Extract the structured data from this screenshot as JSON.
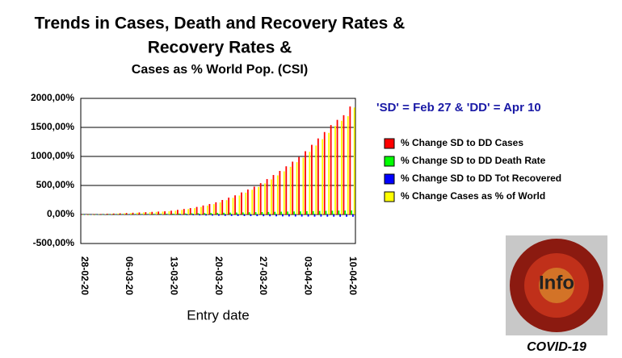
{
  "chart_data": {
    "type": "bar",
    "title": "Trends in Cases, Death and Recovery Rates &",
    "subtitle": "Cases as % World Pop. (CSI)",
    "annotation": "'SD' = Feb 27 & 'DD' = Apr 10",
    "x_label": "Entry date",
    "image_text": "Info",
    "image_caption": "COVID-19",
    "categories": [
      "28-02-20",
      null,
      null,
      null,
      null,
      null,
      null,
      "06-03-20",
      null,
      null,
      null,
      null,
      null,
      null,
      "13-03-20",
      null,
      null,
      null,
      null,
      null,
      null,
      "20-03-20",
      null,
      null,
      null,
      null,
      null,
      null,
      "27-03-20",
      null,
      null,
      null,
      null,
      null,
      null,
      "03-04-20",
      null,
      null,
      null,
      null,
      null,
      null,
      "10-04-20"
    ],
    "series": [
      {
        "name": "% Change SD to DD Cases",
        "color": "#ff0000",
        "values": [
          0,
          2,
          5,
          8,
          12,
          16,
          20,
          25,
          30,
          35,
          40,
          45,
          50,
          55,
          65,
          80,
          95,
          110,
          130,
          155,
          180,
          210,
          250,
          290,
          330,
          380,
          430,
          480,
          540,
          610,
          680,
          750,
          830,
          910,
          990,
          1090,
          1200,
          1310,
          1420,
          1540,
          1630,
          1710,
          1860
        ]
      },
      {
        "name": "% Change SD to DD Death Rate",
        "color": "#00ff00",
        "values": [
          0,
          1,
          2,
          3,
          4,
          5,
          6,
          7,
          8,
          9,
          10,
          11,
          12,
          13,
          14,
          16,
          18,
          20,
          22,
          24,
          26,
          28,
          30,
          32,
          34,
          36,
          38,
          40,
          42,
          44,
          46,
          48,
          50,
          52,
          54,
          56,
          58,
          60,
          62,
          64,
          66,
          68,
          70
        ]
      },
      {
        "name": "% Change SD to DD Tot Recovered",
        "color": "#0000ff",
        "values": [
          0,
          2,
          3,
          4,
          4,
          4,
          3,
          3,
          2,
          1,
          0,
          -2,
          -4,
          -6,
          -8,
          -10,
          -12,
          -14,
          -16,
          -18,
          -20,
          -22,
          -24,
          -25,
          -26,
          -27,
          -28,
          -29,
          -30,
          -31,
          -32,
          -33,
          -34,
          -35,
          -36,
          -36,
          -37,
          -37,
          -38,
          -38,
          -39,
          -39,
          -40
        ]
      },
      {
        "name": "% Change Cases as % of World",
        "color": "#ffff00",
        "values": [
          0,
          2,
          5,
          8,
          12,
          16,
          20,
          25,
          30,
          35,
          40,
          45,
          50,
          55,
          64,
          79,
          94,
          109,
          129,
          153,
          178,
          208,
          247,
          287,
          327,
          376,
          426,
          475,
          535,
          604,
          673,
          743,
          822,
          901,
          980,
          1079,
          1188,
          1297,
          1406,
          1525,
          1614,
          1693,
          1842
        ]
      }
    ],
    "ylim": [
      -500,
      2000
    ],
    "yticks": [
      {
        "value": -500,
        "label": "-500,00%"
      },
      {
        "value": 0,
        "label": "0,00%"
      },
      {
        "value": 500,
        "label": "500,00%"
      },
      {
        "value": 1000,
        "label": "1000,00%"
      },
      {
        "value": 1500,
        "label": "1500,00%"
      },
      {
        "value": 2000,
        "label": "2000,00%"
      }
    ],
    "grid": true
  }
}
